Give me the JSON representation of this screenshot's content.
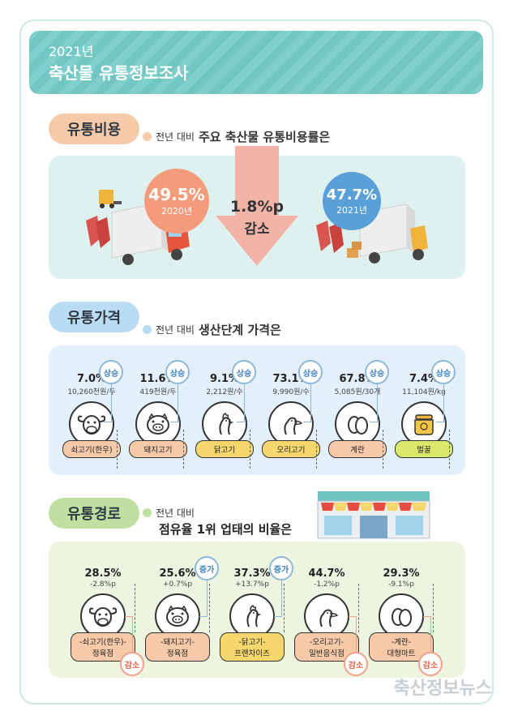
{
  "banner": {
    "year": "2021년",
    "title": "축산물 유통정보조사"
  },
  "cost": {
    "label": "유통비용",
    "sub_prefix": "전년 대비",
    "sub_main": "주요 축산물 유통비용률은",
    "y2020": {
      "value": "49.5%",
      "year": "2020년"
    },
    "y2021": {
      "value": "47.7%",
      "year": "2021년"
    },
    "delta": {
      "value": "1.8%p",
      "dir": "감소"
    }
  },
  "price": {
    "label": "유통가격",
    "sub_prefix": "전년 대비",
    "sub_main": "생산단계 가격은",
    "items": [
      {
        "pct": "7.0%",
        "unit": "10,260천원/두",
        "name": "쇠고기(한우)",
        "dir": "상승",
        "icon": "cow-icon"
      },
      {
        "pct": "11.6%",
        "unit": "419천원/두",
        "name": "돼지고기",
        "dir": "상승",
        "icon": "pig-icon"
      },
      {
        "pct": "9.1%",
        "unit": "2,212원/수",
        "name": "닭고기",
        "dir": "상승",
        "icon": "chicken-icon"
      },
      {
        "pct": "73.1%",
        "unit": "9,990원/수",
        "name": "오리고기",
        "dir": "상승",
        "icon": "duck-icon"
      },
      {
        "pct": "67.8%",
        "unit": "5,085원/30개",
        "name": "계란",
        "dir": "상승",
        "icon": "egg-icon"
      },
      {
        "pct": "7.4%",
        "unit": "11,104원/kg",
        "name": "벌꿀",
        "dir": "상승",
        "icon": "honey-icon"
      }
    ]
  },
  "route": {
    "label": "유통경로",
    "sub_prefix": "전년 대비",
    "sub_main": "점유율 1위 업태의 비율은",
    "items": [
      {
        "pct": "28.5%",
        "delta": "-2.8%p",
        "name1": "-쇠고기(한우)-",
        "name2": "정육점",
        "dir": "감소",
        "icon": "cow-icon"
      },
      {
        "pct": "25.6%",
        "delta": "+0.7%p",
        "name1": "-돼지고기-",
        "name2": "정육점",
        "dir": "증가",
        "icon": "pig-icon"
      },
      {
        "pct": "37.3%",
        "delta": "+13.7%p",
        "name1": "-닭고기-",
        "name2": "프랜차이즈",
        "dir": "증가",
        "icon": "chicken-icon"
      },
      {
        "pct": "44.7%",
        "delta": "-1.2%p",
        "name1": "-오리고기-",
        "name2": "일반음식점",
        "dir": "감소",
        "icon": "duck-icon"
      },
      {
        "pct": "29.3%",
        "delta": "-9.1%p",
        "name1": "-계란-",
        "name2": "대형마트",
        "dir": "감소",
        "icon": "egg-icon"
      }
    ]
  },
  "watermark": "축산정보뉴스",
  "colors": {
    "teal": "#7fd0cc",
    "orange": "#f39b7b",
    "blue": "#5aa0d8",
    "green": "#a7d37a"
  }
}
